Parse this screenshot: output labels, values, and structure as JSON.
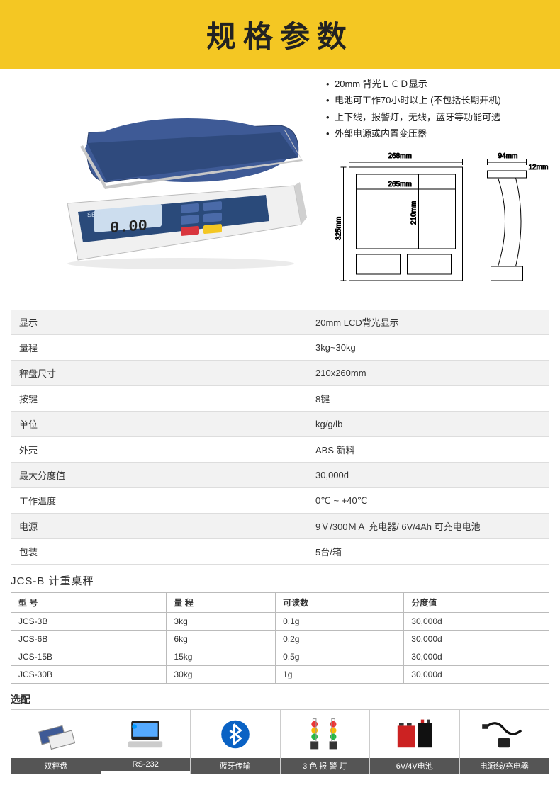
{
  "header": {
    "title": "规格参数"
  },
  "bullets": [
    "20mm 背光ＬＣＤ显示",
    "电池可工作70小时以上 (不包括长期开机)",
    "上下线，报警灯，无线，蓝牙等功能可选",
    "外部电源或内置变压器"
  ],
  "diagram": {
    "w_outer": "268mm",
    "w_inner": "265mm",
    "h_outer": "325mm",
    "h_inner": "210mm",
    "side_w": "94mm",
    "side_t": "12mm"
  },
  "specs": [
    {
      "label": "显示",
      "value": "20mm LCD背光显示"
    },
    {
      "label": "量程",
      "value": "3kg~30kg"
    },
    {
      "label": "秤盘尺寸",
      "value": "210x260mm"
    },
    {
      "label": "按键",
      "value": "8键"
    },
    {
      "label": "单位",
      "value": "kg/g/lb"
    },
    {
      "label": "外壳",
      "value": "ABS 新料"
    },
    {
      "label": "最大分度值",
      "value": "30,000d"
    },
    {
      "label": "工作温度",
      "value": "0℃ ~ +40℃"
    },
    {
      "label": "电源",
      "value": "9Ｖ/300ＭＡ 充电器/ 6V/4Ah 可充电电池"
    },
    {
      "label": "包装",
      "value": "5台/箱"
    }
  ],
  "model_section": {
    "title": "JCS-B 计重桌秤",
    "headers": [
      "型 号",
      "量  程",
      "可读数",
      "分度值"
    ],
    "rows": [
      [
        "JCS-3B",
        "3kg",
        "0.1g",
        "30,000d"
      ],
      [
        "JCS-6B",
        "6kg",
        "0.2g",
        "30,000d"
      ],
      [
        "JCS-15B",
        "15kg",
        "0.5g",
        "30,000d"
      ],
      [
        "JCS-30B",
        "30kg",
        "1g",
        "30,000d"
      ]
    ]
  },
  "options": {
    "title": "选配",
    "items": [
      {
        "label": "双秤盘",
        "icon": "scale"
      },
      {
        "label": "RS-232",
        "icon": "monitor"
      },
      {
        "label": "蓝牙传输",
        "icon": "bluetooth"
      },
      {
        "label": "3 色 报 警 灯",
        "icon": "lights"
      },
      {
        "label": "6V/4V电池",
        "icon": "battery"
      },
      {
        "label": "电源线/充电器",
        "icon": "charger"
      }
    ]
  },
  "colors": {
    "header_bg": "#f4c723",
    "table_odd": "#f2f2f2",
    "opt_label_bg": "#555555",
    "scale_platform": "#3e5a96",
    "scale_body": "#e8e8e8",
    "scale_panel": "#2a4a7a"
  }
}
